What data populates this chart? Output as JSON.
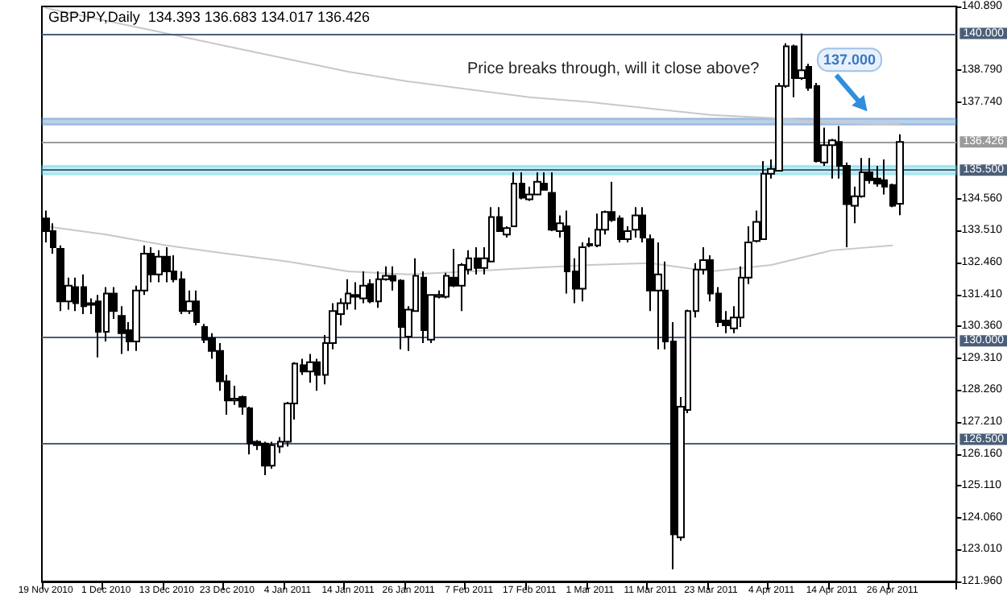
{
  "chart_data": {
    "type": "candlestick",
    "title": "GBPJPY,Daily  134.393 136.683 134.017 136.426",
    "categories": [
      "19 Nov 2010",
      null,
      null,
      null,
      null,
      null,
      null,
      null,
      "1 Dec 2010",
      null,
      null,
      null,
      null,
      null,
      null,
      null,
      "13 Dec 2010",
      null,
      null,
      null,
      null,
      null,
      null,
      null,
      "23 Dec 2010",
      null,
      null,
      null,
      null,
      null,
      null,
      null,
      "4 Jan 2011",
      null,
      null,
      null,
      null,
      null,
      null,
      null,
      "14 Jan 2011",
      null,
      null,
      null,
      null,
      null,
      null,
      null,
      "26 Jan 2011",
      null,
      null,
      null,
      null,
      null,
      null,
      null,
      "7 Feb 2011",
      null,
      null,
      null,
      null,
      null,
      null,
      null,
      "17 Feb 2011",
      null,
      null,
      null,
      null,
      null,
      null,
      null,
      "1 Mar 2011",
      null,
      null,
      null,
      null,
      null,
      null,
      null,
      "11 Mar 2011",
      null,
      null,
      null,
      null,
      null,
      null,
      null,
      "23 Mar 2011",
      null,
      null,
      null,
      null,
      null,
      null,
      null,
      "4 Apr 2011",
      null,
      null,
      null,
      null,
      null,
      null,
      null,
      "14 Apr 2011",
      null,
      null,
      null,
      null,
      null,
      null,
      null,
      "26 Apr 2011",
      null
    ],
    "series": [
      {
        "type": "line",
        "color": "#c8c8c8",
        "values": [
          140.84,
          null,
          null,
          null,
          null,
          null,
          null,
          null,
          140.42,
          null,
          null,
          null,
          null,
          null,
          null,
          null,
          140.0,
          null,
          null,
          null,
          null,
          null,
          null,
          null,
          139.58,
          null,
          null,
          null,
          null,
          null,
          null,
          null,
          139.16,
          null,
          null,
          null,
          null,
          null,
          null,
          null,
          138.74,
          null,
          null,
          null,
          null,
          null,
          null,
          null,
          138.42,
          null,
          null,
          null,
          null,
          null,
          null,
          null,
          138.16,
          null,
          null,
          null,
          null,
          null,
          null,
          null,
          137.9,
          null,
          null,
          null,
          null,
          null,
          null,
          null,
          137.74,
          null,
          null,
          null,
          null,
          null,
          null,
          null,
          137.53,
          null,
          null,
          null,
          null,
          null,
          null,
          null,
          137.32,
          null,
          null,
          null,
          null,
          null,
          null,
          null,
          137.22,
          null,
          null,
          null,
          null,
          null,
          null,
          null,
          137.06,
          null,
          null,
          null,
          null,
          null,
          null,
          null,
          null,
          137.0
        ]
      },
      {
        "type": "line",
        "color": "#c8c8c8",
        "values": [
          133.65,
          null,
          null,
          null,
          null,
          null,
          null,
          null,
          133.38,
          null,
          null,
          null,
          null,
          null,
          null,
          null,
          133.02,
          null,
          null,
          null,
          null,
          null,
          null,
          null,
          132.75,
          null,
          null,
          null,
          null,
          null,
          null,
          null,
          132.49,
          null,
          null,
          null,
          null,
          null,
          null,
          null,
          132.17,
          null,
          null,
          null,
          null,
          null,
          null,
          null,
          132.07,
          null,
          null,
          null,
          null,
          null,
          null,
          null,
          132.17,
          null,
          null,
          null,
          null,
          null,
          null,
          null,
          132.28,
          null,
          null,
          null,
          null,
          null,
          null,
          null,
          132.38,
          null,
          null,
          null,
          null,
          null,
          null,
          null,
          132.44,
          null,
          null,
          null,
          null,
          null,
          null,
          null,
          132.17,
          null,
          null,
          null,
          null,
          null,
          null,
          null,
          132.38,
          null,
          null,
          null,
          null,
          null,
          null,
          null,
          132.86,
          null,
          null,
          null,
          null,
          null,
          null,
          null,
          133.02,
          null
        ]
      },
      {
        "type": "candlestick",
        "color": "#000000",
        "ohlc": [
          [
            133.91,
            134.17,
            133.12,
            133.49
          ],
          [
            133.49,
            133.75,
            132.75,
            132.96
          ],
          [
            132.91,
            133.02,
            130.86,
            131.18
          ],
          [
            131.18,
            131.96,
            130.91,
            131.7
          ],
          [
            131.65,
            131.96,
            130.86,
            131.12
          ],
          [
            131.65,
            132.07,
            130.76,
            131.02
          ],
          [
            131.07,
            131.28,
            130.76,
            131.12
          ],
          [
            131.18,
            131.39,
            129.34,
            130.18
          ],
          [
            130.18,
            131.65,
            129.86,
            131.44
          ],
          [
            131.44,
            131.65,
            130.6,
            130.86
          ],
          [
            130.7,
            131.02,
            129.45,
            130.13
          ],
          [
            130.23,
            130.5,
            129.55,
            129.86
          ],
          [
            129.86,
            131.7,
            129.55,
            131.54
          ],
          [
            131.54,
            133.02,
            131.39,
            132.75
          ],
          [
            132.75,
            132.96,
            131.81,
            132.07
          ],
          [
            132.07,
            132.86,
            131.81,
            132.65
          ],
          [
            132.65,
            132.96,
            131.81,
            132.17
          ],
          [
            132.17,
            132.7,
            131.81,
            131.91
          ],
          [
            131.91,
            132.17,
            130.76,
            130.86
          ],
          [
            130.86,
            131.54,
            130.76,
            131.18
          ],
          [
            131.18,
            131.54,
            130.39,
            130.5
          ],
          [
            130.34,
            130.44,
            129.81,
            129.92
          ],
          [
            129.97,
            130.13,
            129.29,
            129.55
          ],
          [
            129.55,
            129.81,
            128.24,
            128.55
          ],
          [
            128.55,
            128.76,
            127.45,
            127.92
          ],
          [
            127.92,
            128.4,
            127.77,
            127.98
          ],
          [
            128.03,
            128.08,
            127.45,
            127.71
          ],
          [
            127.66,
            127.71,
            126.14,
            126.5
          ],
          [
            126.56,
            126.61,
            126.29,
            126.45
          ],
          [
            126.5,
            126.56,
            125.46,
            125.77
          ],
          [
            125.77,
            126.56,
            125.67,
            126.45
          ],
          [
            126.4,
            126.71,
            126.19,
            126.56
          ],
          [
            126.56,
            127.87,
            126.4,
            127.82
          ],
          [
            127.82,
            129.18,
            127.29,
            129.13
          ],
          [
            129.08,
            129.29,
            128.76,
            128.87
          ],
          [
            128.87,
            129.45,
            128.5,
            129.18
          ],
          [
            129.18,
            129.29,
            128.24,
            128.76
          ],
          [
            128.76,
            130.07,
            128.45,
            129.81
          ],
          [
            129.81,
            131.12,
            129.6,
            130.86
          ],
          [
            130.76,
            131.28,
            130.39,
            131.12
          ],
          [
            131.12,
            131.91,
            130.91,
            131.44
          ],
          [
            131.39,
            131.81,
            130.91,
            131.33
          ],
          [
            131.28,
            132.17,
            131.12,
            131.7
          ],
          [
            131.75,
            131.91,
            131.12,
            131.18
          ],
          [
            131.18,
            132.17,
            130.97,
            131.91
          ],
          [
            131.91,
            132.33,
            131.86,
            132.02
          ],
          [
            132.02,
            132.33,
            131.54,
            131.86
          ],
          [
            131.86,
            131.91,
            129.6,
            130.34
          ],
          [
            130.02,
            131.02,
            129.55,
            130.91
          ],
          [
            130.86,
            132.6,
            130.86,
            132.02
          ],
          [
            131.96,
            132.17,
            129.81,
            130.23
          ],
          [
            129.92,
            131.39,
            129.81,
            131.39
          ],
          [
            131.33,
            131.54,
            131.28,
            131.39
          ],
          [
            131.33,
            132.12,
            131.28,
            132.02
          ],
          [
            131.96,
            132.91,
            131.65,
            131.7
          ],
          [
            131.7,
            132.44,
            130.86,
            132.38
          ],
          [
            132.23,
            132.86,
            132.07,
            132.6
          ],
          [
            132.6,
            132.96,
            132.07,
            132.28
          ],
          [
            132.28,
            132.96,
            132.07,
            132.6
          ],
          [
            132.49,
            134.28,
            132.49,
            133.96
          ],
          [
            133.96,
            134.28,
            133.49,
            133.49
          ],
          [
            133.38,
            133.65,
            133.28,
            133.59
          ],
          [
            133.65,
            135.43,
            133.65,
            135.06
          ],
          [
            135.06,
            135.43,
            134.54,
            134.59
          ],
          [
            134.54,
            134.96,
            134.49,
            134.7
          ],
          [
            134.7,
            135.43,
            134.7,
            135.12
          ],
          [
            135.06,
            135.43,
            134.85,
            134.85
          ],
          [
            134.75,
            135.43,
            133.49,
            133.54
          ],
          [
            133.49,
            134.01,
            133.28,
            133.75
          ],
          [
            133.65,
            134.17,
            131.44,
            132.17
          ],
          [
            132.17,
            132.6,
            131.12,
            131.6
          ],
          [
            131.6,
            133.12,
            131.18,
            132.96
          ],
          [
            133.02,
            133.28,
            132.96,
            133.07
          ],
          [
            133.02,
            134.07,
            132.96,
            133.54
          ],
          [
            133.54,
            134.17,
            133.38,
            134.12
          ],
          [
            134.12,
            135.12,
            133.8,
            133.86
          ],
          [
            133.91,
            134.01,
            133.12,
            133.23
          ],
          [
            133.23,
            133.65,
            133.12,
            133.49
          ],
          [
            133.54,
            134.28,
            133.28,
            134.01
          ],
          [
            134.01,
            134.28,
            133.12,
            133.28
          ],
          [
            133.23,
            133.38,
            130.86,
            131.54
          ],
          [
            131.54,
            133.12,
            129.6,
            132.07
          ],
          [
            131.54,
            132.49,
            129.6,
            129.86
          ],
          [
            129.86,
            130.5,
            122.36,
            123.51
          ],
          [
            123.41,
            128.03,
            123.3,
            127.71
          ],
          [
            127.61,
            130.91,
            127.5,
            130.86
          ],
          [
            130.86,
            132.44,
            130.65,
            132.23
          ],
          [
            132.23,
            132.96,
            132.07,
            132.54
          ],
          [
            132.54,
            132.7,
            131.18,
            131.44
          ],
          [
            131.44,
            131.65,
            130.34,
            130.5
          ],
          [
            130.55,
            130.86,
            130.13,
            130.39
          ],
          [
            130.29,
            131.02,
            130.13,
            130.65
          ],
          [
            130.65,
            132.33,
            130.34,
            131.96
          ],
          [
            131.96,
            133.65,
            131.75,
            133.12
          ],
          [
            133.17,
            134.17,
            133.12,
            133.8
          ],
          [
            133.23,
            135.8,
            133.23,
            135.38
          ],
          [
            135.38,
            135.85,
            135.22,
            135.54
          ],
          [
            135.48,
            138.37,
            135.48,
            138.27
          ],
          [
            138.27,
            139.68,
            138.21,
            139.58
          ],
          [
            139.58,
            139.63,
            137.9,
            138.53
          ],
          [
            138.53,
            140.0,
            138.47,
            138.79
          ],
          [
            138.9,
            139.0,
            138.11,
            138.21
          ],
          [
            138.27,
            138.37,
            135.75,
            135.8
          ],
          [
            135.75,
            136.9,
            135.64,
            136.32
          ],
          [
            136.32,
            136.53,
            135.22,
            136.48
          ],
          [
            136.43,
            136.95,
            135.22,
            135.64
          ],
          [
            135.64,
            135.75,
            132.96,
            134.38
          ],
          [
            134.33,
            134.96,
            133.75,
            134.64
          ],
          [
            134.64,
            135.9,
            134.59,
            135.43
          ],
          [
            135.43,
            135.9,
            135.06,
            135.17
          ],
          [
            135.22,
            135.64,
            134.96,
            135.06
          ],
          [
            135.17,
            135.85,
            134.7,
            134.96
          ],
          [
            135.01,
            135.06,
            134.28,
            134.33
          ],
          [
            134.393,
            136.683,
            134.017,
            136.426
          ]
        ]
      }
    ],
    "ylim": [
      121.96,
      140.89
    ],
    "yticks": [
      {
        "value": 121.96,
        "label": "121.960"
      },
      {
        "value": 123.01,
        "label": "123.010"
      },
      {
        "value": 124.06,
        "label": "124.060"
      },
      {
        "value": 125.11,
        "label": "125.110"
      },
      {
        "value": 126.16,
        "label": "126.160"
      },
      {
        "value": 127.21,
        "label": "127.210"
      },
      {
        "value": 128.26,
        "label": "128.260"
      },
      {
        "value": 129.31,
        "label": "129.310"
      },
      {
        "value": 130.36,
        "label": "130.360"
      },
      {
        "value": 131.41,
        "label": "131.410"
      },
      {
        "value": 132.46,
        "label": "132.460"
      },
      {
        "value": 133.51,
        "label": "133.510"
      },
      {
        "value": 134.56,
        "label": "134.560"
      },
      {
        "value": 137.74,
        "label": "137.740"
      },
      {
        "value": 138.79,
        "label": "138.790"
      },
      {
        "value": 140.89,
        "label": "140.890"
      }
    ],
    "ref_lines": [
      {
        "axis": "y",
        "value": 140.0,
        "label": "140.000",
        "color": "#4a5e78"
      },
      {
        "axis": "y",
        "value": 135.5,
        "label": "135.500",
        "color": "#4a5e78"
      },
      {
        "axis": "y",
        "value": 130.0,
        "label": "130.000",
        "color": "#4a5e78"
      },
      {
        "axis": "y",
        "value": 126.5,
        "label": "126.500",
        "color": "#4a5e78"
      },
      {
        "axis": "y",
        "value": 136.426,
        "label": "136.426",
        "color": "#9a9a9a"
      }
    ],
    "bands": [
      {
        "axis": "y",
        "from": 135.36,
        "to": 135.64,
        "color": "#40c8dc"
      },
      {
        "axis": "y",
        "from": 137.0,
        "to": 137.2,
        "label": "137.000",
        "color": "#3a78c0"
      }
    ],
    "annotations": [
      "Price breaks through, will it close above?"
    ],
    "grid": false,
    "marker": "none",
    "line_style": "solid"
  }
}
